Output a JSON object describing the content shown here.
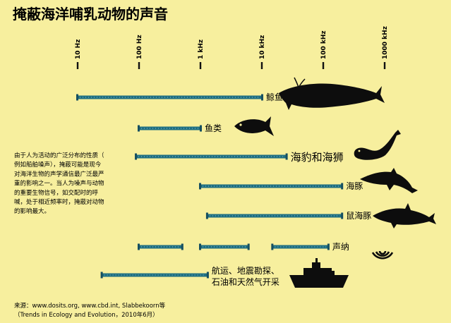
{
  "title": "掩蔽海洋哺乳动物的声音",
  "note_lines": [
    "由于人为活动的广泛分布的性质（",
    "例如船舶噪声），掩蔽可能是现今",
    "对海洋生物的声学通信最广泛最严",
    "重的影响之一。当人为噪声与动物",
    "的重要生物信号，如交配时的呼",
    "喊，处于相近频率时，掩蔽对动物",
    "的影响最大。"
  ],
  "source_lines": [
    "来源：www.dosits.org, www.cbd.int, Slabbekoorn等",
    "（Trends in Ecology and Evolution，2010年6月）"
  ],
  "icons": {
    "whale": "whale-icon",
    "fish": "tuna-fish-icon",
    "seal": "seal-icon",
    "dolphin": "dolphin-icon",
    "porpoise": "porpoise-icon",
    "sonar": "sonar-waves-icon",
    "ship": "ship-icon"
  },
  "colors": {
    "background": "#f7ef9e",
    "bar": "#1f6f82",
    "bar_dark": "#164f60",
    "bar_dots": "#8fc7d3",
    "silhouette": "#0d0d0d",
    "axis": "#111111"
  },
  "chart_data": {
    "type": "bar",
    "orientation": "horizontal range",
    "x_scale": "log",
    "x_unit": "Hz",
    "xlim": [
      10,
      1000000
    ],
    "x_ticks": [
      {
        "value": 10,
        "label": "10 Hz"
      },
      {
        "value": 100,
        "label": "100 Hz"
      },
      {
        "value": 1000,
        "label": "1 kHz"
      },
      {
        "value": 10000,
        "label": "10 kHz"
      },
      {
        "value": 100000,
        "label": "100 kHz"
      },
      {
        "value": 1000000,
        "label": "1000 kHz"
      }
    ],
    "rows": [
      {
        "label": "鲸鱼",
        "ranges": [
          [
            10,
            10000
          ]
        ],
        "icon": "whale-icon",
        "big": false
      },
      {
        "label": "鱼类",
        "ranges": [
          [
            100,
            1000
          ]
        ],
        "icon": "tuna-fish-icon",
        "big": false
      },
      {
        "label": "海豹和海狮",
        "ranges": [
          [
            90,
            25000
          ]
        ],
        "icon": "seal-icon",
        "big": true
      },
      {
        "label": "海豚",
        "ranges": [
          [
            1000,
            200000
          ]
        ],
        "icon": "dolphin-icon",
        "big": false
      },
      {
        "label": "鼠海豚",
        "ranges": [
          [
            1300,
            200000
          ]
        ],
        "icon": "porpoise-icon",
        "big": false
      },
      {
        "label": "声纳",
        "ranges": [
          [
            100,
            500
          ],
          [
            1000,
            6000
          ],
          [
            15000,
            120000
          ]
        ],
        "icon": "sonar-waves-icon",
        "big": false
      },
      {
        "label": "航运、地震勘探、石油和天然气开采",
        "label_lines": [
          "航运、地震勘探、",
          "石油和天然气开采"
        ],
        "ranges": [
          [
            25,
            1300
          ]
        ],
        "icon": "ship-icon",
        "big": false
      }
    ]
  }
}
